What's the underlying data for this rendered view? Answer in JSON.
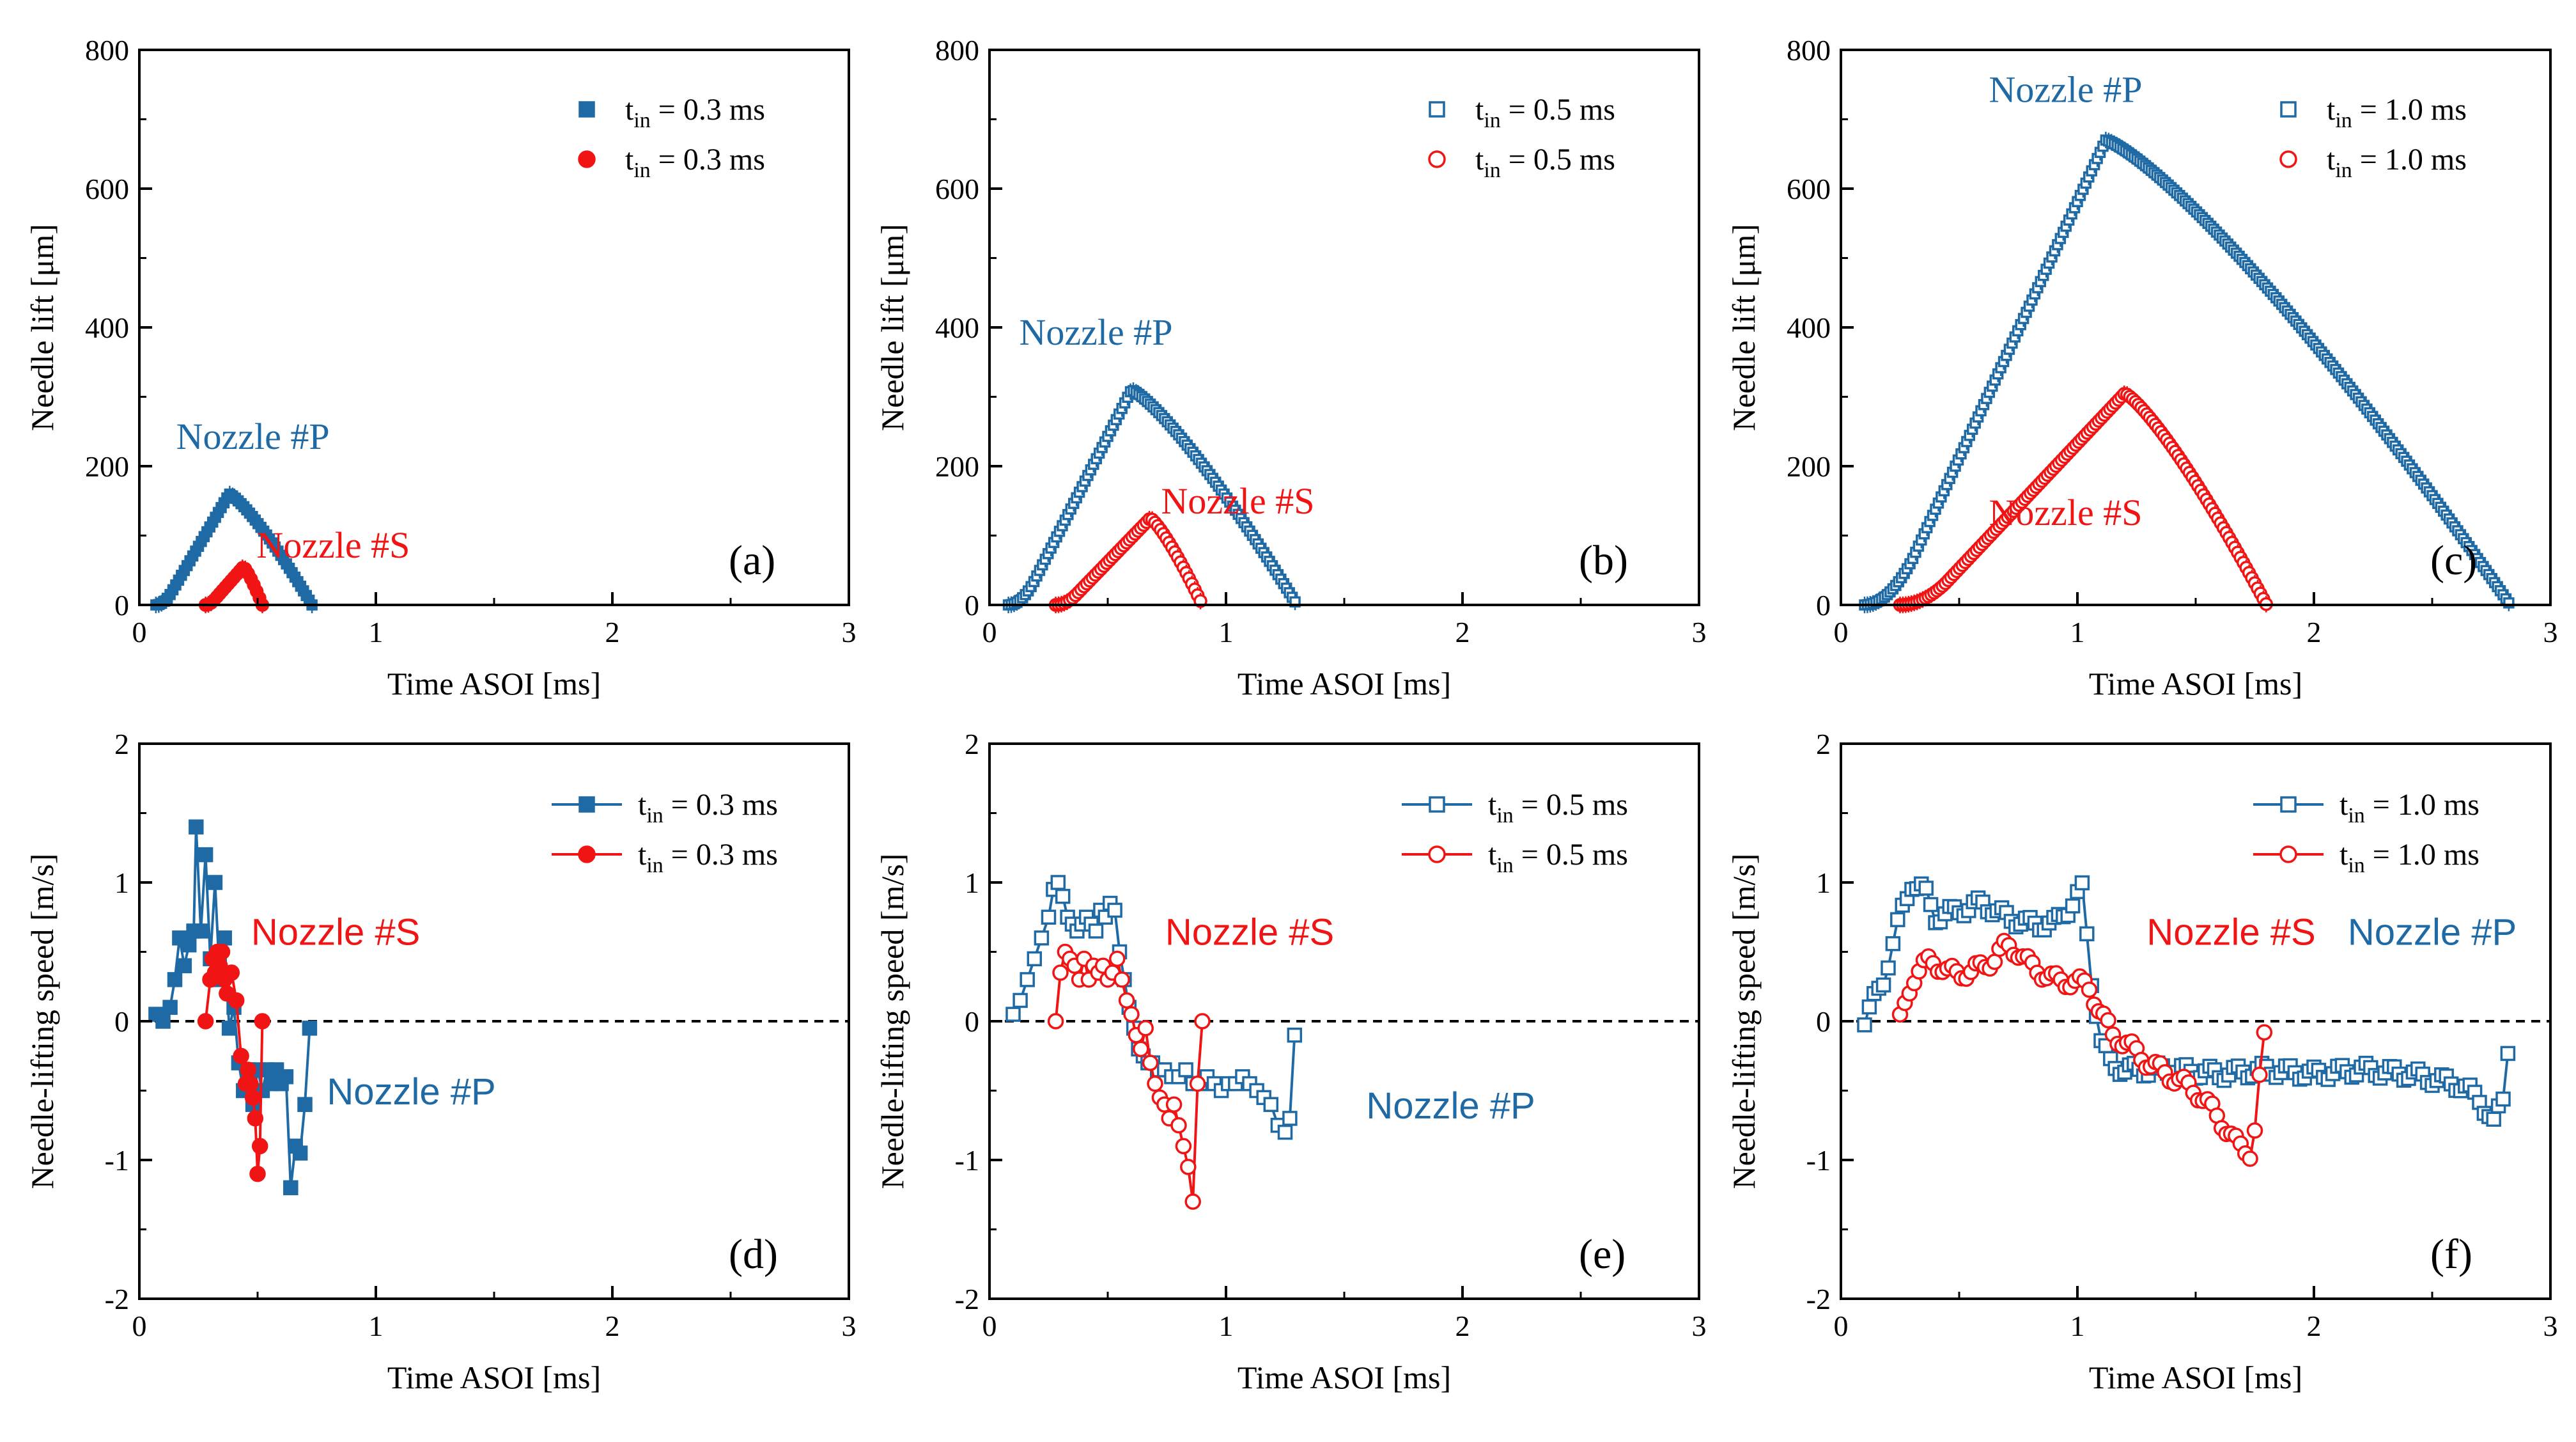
{
  "colors": {
    "nozzle_p": "#1f6aa5",
    "nozzle_s": "#f01414",
    "axis": "#000000"
  },
  "chart_data": [
    {
      "id": "a",
      "type": "scatter",
      "panel_label": "(a)",
      "xlabel": "Time ASOI [ms]",
      "ylabel": "Needle lift [μm]",
      "xlim": [
        0,
        3
      ],
      "ylim": [
        0,
        800
      ],
      "xticks": [
        0,
        1,
        2,
        3
      ],
      "xtick_labels": [
        "0",
        "1",
        "2",
        "3"
      ],
      "yticks": [
        0,
        200,
        400,
        600,
        800
      ],
      "ytick_labels": [
        "0",
        "200",
        "400",
        "600",
        "800"
      ],
      "marker_style": "filled",
      "legend_position": "top-right",
      "legend": [
        {
          "prefix": "t",
          "sub": "in",
          "suffix": " = 0.3 ms",
          "series": "P",
          "marker": "square-filled"
        },
        {
          "prefix": "t",
          "sub": "in",
          "suffix": " = 0.3 ms",
          "series": "S",
          "marker": "circle-filled"
        }
      ],
      "series": [
        {
          "name": "Nozzle #P",
          "key": "P",
          "shape": "tri",
          "t0": 0.07,
          "tpk": 0.38,
          "t1": 0.73,
          "peak": 160,
          "step": 0.012
        },
        {
          "name": "Nozzle #S",
          "key": "S",
          "shape": "tri",
          "t0": 0.28,
          "tpk": 0.44,
          "t1": 0.52,
          "peak": 55,
          "step": 0.012
        }
      ],
      "annotations": [
        {
          "text": "Nozzle #P",
          "series": "P",
          "x": 0.48,
          "y": 225
        },
        {
          "text": "Nozzle #S",
          "series": "S",
          "x": 0.82,
          "y": 68
        }
      ]
    },
    {
      "id": "b",
      "type": "scatter",
      "panel_label": "(b)",
      "xlabel": "Time ASOI [ms]",
      "ylabel": "Needle lift [μm]",
      "xlim": [
        0,
        3
      ],
      "ylim": [
        0,
        800
      ],
      "xticks": [
        0,
        1,
        2,
        3
      ],
      "xtick_labels": [
        "0",
        "1",
        "2",
        "3"
      ],
      "yticks": [
        0,
        200,
        400,
        600,
        800
      ],
      "ytick_labels": [
        "0",
        "200",
        "400",
        "600",
        "800"
      ],
      "marker_style": "open",
      "legend_position": "top-right",
      "legend": [
        {
          "prefix": "t",
          "sub": "in",
          "suffix": " = 0.5 ms",
          "series": "P",
          "marker": "square-open"
        },
        {
          "prefix": "t",
          "sub": "in",
          "suffix": " = 0.5 ms",
          "series": "S",
          "marker": "circle-open"
        }
      ],
      "series": [
        {
          "name": "Nozzle #P",
          "key": "P",
          "shape": "tri",
          "t0": 0.08,
          "tpk": 0.6,
          "t1": 1.3,
          "peak": 310,
          "step": 0.012
        },
        {
          "name": "Nozzle #S",
          "key": "S",
          "shape": "tri",
          "t0": 0.28,
          "tpk": 0.68,
          "t1": 0.9,
          "peak": 125,
          "step": 0.012
        }
      ],
      "annotations": [
        {
          "text": "Nozzle #P",
          "series": "P",
          "x": 0.45,
          "y": 375
        },
        {
          "text": "Nozzle #S",
          "series": "S",
          "x": 1.05,
          "y": 132
        }
      ]
    },
    {
      "id": "c",
      "type": "scatter",
      "panel_label": "(c)",
      "xlabel": "Time ASOI [ms]",
      "ylabel": "Needle lift [μm]",
      "xlim": [
        0,
        3
      ],
      "ylim": [
        0,
        800
      ],
      "xticks": [
        0,
        1,
        2,
        3
      ],
      "xtick_labels": [
        "0",
        "1",
        "2",
        "3"
      ],
      "yticks": [
        0,
        200,
        400,
        600,
        800
      ],
      "ytick_labels": [
        "0",
        "200",
        "400",
        "600",
        "800"
      ],
      "marker_style": "open",
      "legend_position": "top-right",
      "legend": [
        {
          "prefix": "t",
          "sub": "in",
          "suffix": " = 1.0 ms",
          "series": "P",
          "marker": "square-open"
        },
        {
          "prefix": "t",
          "sub": "in",
          "suffix": " = 1.0 ms",
          "series": "S",
          "marker": "circle-open"
        }
      ],
      "series": [
        {
          "name": "Nozzle #P",
          "key": "P",
          "shape": "tri",
          "t0": 0.1,
          "tpk": 1.12,
          "t1": 2.83,
          "peak": 670,
          "step": 0.012
        },
        {
          "name": "Nozzle #S",
          "key": "S",
          "shape": "tri",
          "t0": 0.25,
          "tpk": 1.2,
          "t1": 1.8,
          "peak": 305,
          "step": 0.012
        }
      ],
      "annotations": [
        {
          "text": "Nozzle #P",
          "series": "P",
          "x": 0.95,
          "y": 725
        },
        {
          "text": "Nozzle #S",
          "series": "S",
          "x": 0.95,
          "y": 115
        }
      ]
    },
    {
      "id": "d",
      "type": "line",
      "panel_label": "(d)",
      "xlabel": "Time ASOI [ms]",
      "ylabel": "Needle-lifting speed [m/s]",
      "xlim": [
        0,
        3
      ],
      "ylim": [
        -2,
        2
      ],
      "xticks": [
        0,
        1,
        2,
        3
      ],
      "xtick_labels": [
        "0",
        "1",
        "2",
        "3"
      ],
      "yticks": [
        -2,
        -1,
        0,
        1,
        2
      ],
      "ytick_labels": [
        "-2",
        "-1",
        "0",
        "1",
        "2"
      ],
      "zero_line": true,
      "marker_style": "filled",
      "legend_position": "top-right",
      "legend": [
        {
          "prefix": "t",
          "sub": "in",
          "suffix": " = 0.3 ms",
          "series": "P",
          "marker": "square-filled"
        },
        {
          "prefix": "t",
          "sub": "in",
          "suffix": " = 0.3 ms",
          "series": "S",
          "marker": "circle-filled"
        }
      ],
      "series": [
        {
          "name": "Nozzle #P",
          "key": "P",
          "shape": "points",
          "x": [
            0.07,
            0.1,
            0.13,
            0.15,
            0.17,
            0.19,
            0.21,
            0.23,
            0.24,
            0.26,
            0.28,
            0.3,
            0.32,
            0.34,
            0.36,
            0.38,
            0.4,
            0.42,
            0.44,
            0.46,
            0.48,
            0.5,
            0.52,
            0.54,
            0.56,
            0.58,
            0.6,
            0.62,
            0.64,
            0.66,
            0.68,
            0.7,
            0.72
          ],
          "y": [
            0.05,
            0.0,
            0.1,
            0.3,
            0.6,
            0.4,
            0.55,
            0.65,
            1.4,
            0.65,
            1.2,
            0.45,
            1.0,
            0.3,
            0.6,
            -0.05,
            0.1,
            -0.3,
            -0.5,
            -0.35,
            -0.6,
            -0.35,
            -0.5,
            -0.35,
            -0.45,
            -0.35,
            -0.45,
            -0.4,
            -1.2,
            -0.9,
            -0.95,
            -0.6,
            -0.05
          ]
        },
        {
          "name": "Nozzle #S",
          "key": "S",
          "shape": "points",
          "x": [
            0.28,
            0.3,
            0.31,
            0.32,
            0.33,
            0.34,
            0.35,
            0.36,
            0.37,
            0.39,
            0.41,
            0.43,
            0.45,
            0.46,
            0.47,
            0.48,
            0.49,
            0.5,
            0.51,
            0.52
          ],
          "y": [
            0.0,
            0.3,
            0.45,
            0.35,
            0.5,
            0.4,
            0.5,
            0.3,
            0.2,
            0.35,
            0.15,
            -0.25,
            -0.45,
            -0.35,
            -0.45,
            -0.55,
            -0.7,
            -1.1,
            -0.9,
            0.0
          ]
        }
      ],
      "annotations": [
        {
          "text": "Nozzle #S",
          "series": "S",
          "x": 0.83,
          "y": 0.55
        },
        {
          "text": "Nozzle #P",
          "series": "P",
          "x": 1.15,
          "y": -0.6
        }
      ]
    },
    {
      "id": "e",
      "type": "line",
      "panel_label": "(e)",
      "xlabel": "Time ASOI [ms]",
      "ylabel": "Needle-lifting speed [m/s]",
      "xlim": [
        0,
        3
      ],
      "ylim": [
        -2,
        2
      ],
      "xticks": [
        0,
        1,
        2,
        3
      ],
      "xtick_labels": [
        "0",
        "1",
        "2",
        "3"
      ],
      "yticks": [
        -2,
        -1,
        0,
        1,
        2
      ],
      "ytick_labels": [
        "-2",
        "-1",
        "0",
        "1",
        "2"
      ],
      "zero_line": true,
      "marker_style": "open",
      "legend_position": "top-right",
      "legend": [
        {
          "prefix": "t",
          "sub": "in",
          "suffix": " = 0.5 ms",
          "series": "P",
          "marker": "square-open"
        },
        {
          "prefix": "t",
          "sub": "in",
          "suffix": " = 0.5 ms",
          "series": "S",
          "marker": "circle-open"
        }
      ],
      "series": [
        {
          "name": "Nozzle #P",
          "key": "P",
          "shape": "points",
          "x": [
            0.1,
            0.13,
            0.16,
            0.19,
            0.22,
            0.25,
            0.27,
            0.29,
            0.31,
            0.33,
            0.35,
            0.37,
            0.39,
            0.41,
            0.43,
            0.45,
            0.47,
            0.49,
            0.51,
            0.53,
            0.55,
            0.57,
            0.59,
            0.61,
            0.63,
            0.65,
            0.67,
            0.69,
            0.71,
            0.74,
            0.77,
            0.8,
            0.83,
            0.86,
            0.89,
            0.92,
            0.95,
            0.98,
            1.01,
            1.04,
            1.07,
            1.1,
            1.13,
            1.16,
            1.19,
            1.22,
            1.25,
            1.27,
            1.29
          ],
          "y": [
            0.05,
            0.15,
            0.3,
            0.45,
            0.6,
            0.75,
            0.95,
            1.0,
            0.9,
            0.75,
            0.7,
            0.65,
            0.7,
            0.75,
            0.7,
            0.65,
            0.8,
            0.75,
            0.85,
            0.8,
            0.5,
            0.3,
            0.1,
            -0.05,
            -0.2,
            -0.25,
            -0.3,
            -0.3,
            -0.35,
            -0.35,
            -0.4,
            -0.4,
            -0.35,
            -0.45,
            -0.45,
            -0.4,
            -0.45,
            -0.5,
            -0.45,
            -0.45,
            -0.4,
            -0.45,
            -0.5,
            -0.55,
            -0.6,
            -0.75,
            -0.8,
            -0.7,
            -0.1
          ]
        },
        {
          "name": "Nozzle #S",
          "key": "S",
          "shape": "points",
          "x": [
            0.28,
            0.3,
            0.32,
            0.34,
            0.36,
            0.38,
            0.4,
            0.42,
            0.44,
            0.46,
            0.48,
            0.5,
            0.52,
            0.54,
            0.56,
            0.58,
            0.6,
            0.62,
            0.64,
            0.66,
            0.68,
            0.7,
            0.72,
            0.74,
            0.76,
            0.78,
            0.8,
            0.82,
            0.84,
            0.86,
            0.88,
            0.9
          ],
          "y": [
            0.0,
            0.35,
            0.5,
            0.45,
            0.4,
            0.3,
            0.45,
            0.3,
            0.4,
            0.35,
            0.4,
            0.3,
            0.35,
            0.45,
            0.3,
            0.15,
            0.05,
            -0.1,
            -0.2,
            -0.05,
            -0.3,
            -0.45,
            -0.55,
            -0.6,
            -0.7,
            -0.6,
            -0.75,
            -0.9,
            -1.05,
            -1.3,
            -0.45,
            0.0
          ]
        }
      ],
      "annotations": [
        {
          "text": "Nozzle #S",
          "series": "S",
          "x": 1.1,
          "y": 0.55
        },
        {
          "text": "Nozzle #P",
          "series": "P",
          "x": 1.95,
          "y": -0.7
        }
      ]
    },
    {
      "id": "f",
      "type": "line",
      "panel_label": "(f)",
      "xlabel": "Time ASOI [ms]",
      "ylabel": "Needle-lifting speed [m/s]",
      "xlim": [
        0,
        3
      ],
      "ylim": [
        -2,
        2
      ],
      "xticks": [
        0,
        1,
        2,
        3
      ],
      "xtick_labels": [
        "0",
        "1",
        "2",
        "3"
      ],
      "yticks": [
        -2,
        -1,
        0,
        1,
        2
      ],
      "ytick_labels": [
        "-2",
        "-1",
        "0",
        "1",
        "2"
      ],
      "zero_line": true,
      "marker_style": "open",
      "legend_position": "top-right",
      "legend": [
        {
          "prefix": "t",
          "sub": "in",
          "suffix": " = 1.0 ms",
          "series": "P",
          "marker": "square-open"
        },
        {
          "prefix": "t",
          "sub": "in",
          "suffix": " = 1.0 ms",
          "series": "S",
          "marker": "circle-open"
        }
      ],
      "series": [
        {
          "name": "Nozzle #P",
          "key": "P",
          "shape": "keyframes",
          "step": 0.02,
          "kx": [
            0.1,
            0.18,
            0.25,
            0.3,
            0.35,
            0.4,
            0.5,
            0.6,
            0.7,
            0.8,
            0.9,
            0.98,
            1.02,
            1.06,
            1.1,
            1.14,
            1.2,
            1.4,
            1.6,
            1.8,
            2.0,
            2.2,
            2.4,
            2.6,
            2.7,
            2.76,
            2.8,
            2.83
          ],
          "ky": [
            0.0,
            0.3,
            0.75,
            1.0,
            0.95,
            0.75,
            0.8,
            0.85,
            0.75,
            0.7,
            0.7,
            0.85,
            0.95,
            0.3,
            -0.15,
            -0.3,
            -0.35,
            -0.35,
            -0.38,
            -0.35,
            -0.38,
            -0.35,
            -0.38,
            -0.45,
            -0.55,
            -0.75,
            -0.55,
            0.0
          ]
        },
        {
          "name": "Nozzle #S",
          "key": "S",
          "shape": "keyframes",
          "step": 0.02,
          "kx": [
            0.25,
            0.3,
            0.38,
            0.45,
            0.55,
            0.65,
            0.7,
            0.75,
            0.8,
            0.9,
            1.0,
            1.05,
            1.1,
            1.15,
            1.2,
            1.3,
            1.4,
            1.5,
            1.6,
            1.68,
            1.74,
            1.78,
            1.8
          ],
          "ky": [
            0.0,
            0.3,
            0.45,
            0.35,
            0.35,
            0.45,
            0.55,
            0.5,
            0.4,
            0.3,
            0.28,
            0.25,
            0.05,
            -0.1,
            -0.15,
            -0.3,
            -0.4,
            -0.5,
            -0.7,
            -0.9,
            -0.95,
            -0.25,
            0.0
          ]
        }
      ],
      "annotations": [
        {
          "text": "Nozzle #S",
          "series": "S",
          "x": 1.65,
          "y": 0.55
        },
        {
          "text": "Nozzle #P",
          "series": "P",
          "x": 2.5,
          "y": 0.55
        }
      ]
    }
  ]
}
